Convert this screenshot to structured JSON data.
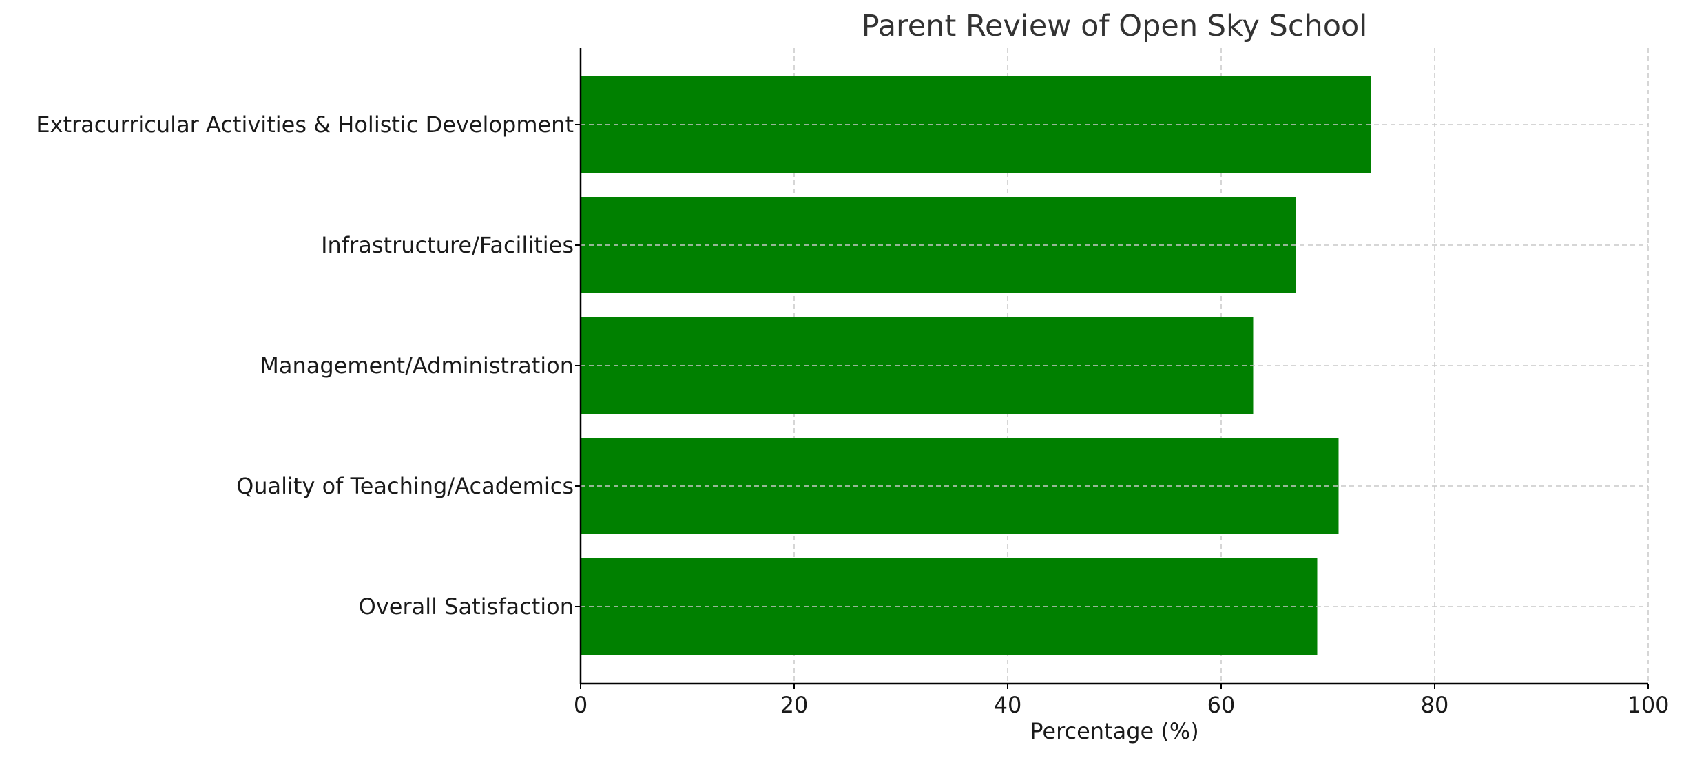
{
  "chart_data": {
    "type": "bar",
    "orientation": "horizontal",
    "title": "Parent Review of Open Sky School",
    "xlabel": "Percentage (%)",
    "ylabel": "",
    "xlim": [
      0,
      100
    ],
    "x_ticks": [
      0,
      20,
      40,
      60,
      80,
      100
    ],
    "grid": true,
    "bar_color": "#008000",
    "categories": [
      "Overall Satisfaction",
      "Quality of Teaching/Academics",
      "Management/Administration",
      "Infrastructure/Facilities",
      "Extracurricular Activities & Holistic Development"
    ],
    "values": [
      69,
      71,
      63,
      67,
      74
    ]
  }
}
